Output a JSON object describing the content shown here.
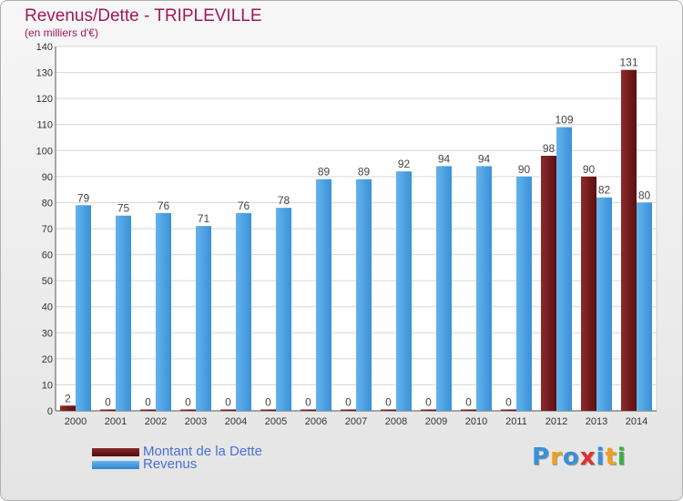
{
  "title": "Revenus/Dette - TRIPLEVILLE",
  "subtitle": "(en milliers d'€)",
  "logo": {
    "text": "Proxiti",
    "letters": [
      "P",
      "r",
      "o",
      "x",
      "i",
      "t",
      "i"
    ],
    "colors": [
      "#3a8fd8",
      "#f0a020",
      "#3a8fd8",
      "#e03030",
      "#3a8fd8",
      "#f0a020",
      "#3ab040"
    ]
  },
  "colors": {
    "dette": "#6e1818",
    "revenus": "#4a9ee0",
    "title": "#a0195a",
    "legend_text": "#4a6fd8"
  },
  "chart_data": {
    "type": "bar",
    "title": "Revenus/Dette - TRIPLEVILLE",
    "subtitle": "(en milliers d'€)",
    "categories": [
      "2000",
      "2001",
      "2002",
      "2003",
      "2004",
      "2005",
      "2006",
      "2007",
      "2008",
      "2009",
      "2010",
      "2011",
      "2012",
      "2013",
      "2014"
    ],
    "series": [
      {
        "name": "Montant de la Dette",
        "values": [
          2,
          0,
          0,
          0,
          0,
          0,
          0,
          0,
          0,
          0,
          0,
          0,
          98,
          90,
          131
        ]
      },
      {
        "name": "Revenus",
        "values": [
          79,
          75,
          76,
          71,
          76,
          78,
          89,
          89,
          92,
          94,
          94,
          90,
          109,
          82,
          80
        ]
      }
    ],
    "ylim": [
      0,
      140
    ],
    "yticks": [
      0,
      10,
      20,
      30,
      40,
      50,
      60,
      70,
      80,
      90,
      100,
      110,
      120,
      130,
      140
    ],
    "grid": true,
    "legend_position": "bottom-left"
  }
}
